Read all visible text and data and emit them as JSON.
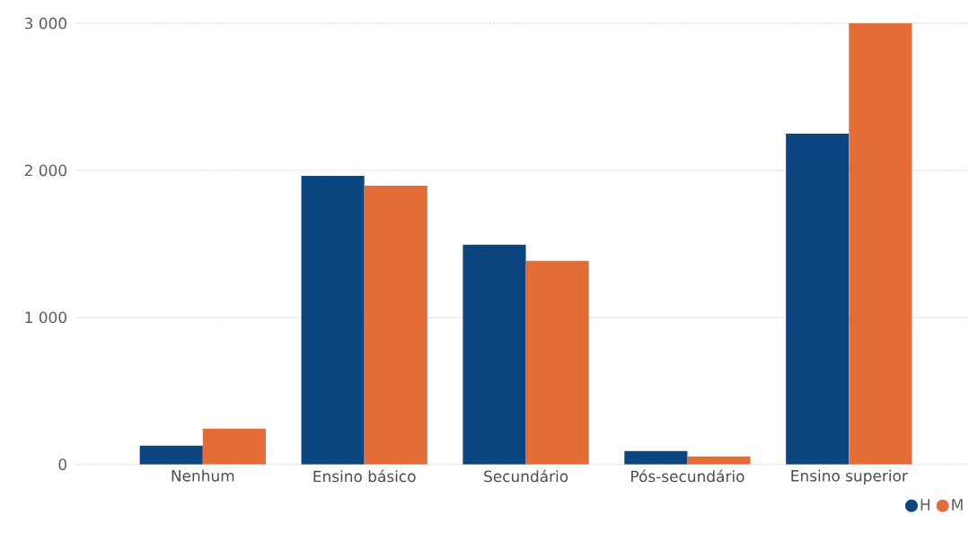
{
  "chart_data": {
    "type": "bar",
    "categories": [
      "Nenhum",
      "Ensino básico",
      "Secundário",
      "Pós-secundário",
      "Ensino superior"
    ],
    "series": [
      {
        "name": "H",
        "color": "#0b4680",
        "values": [
          128,
          1963,
          1494,
          91,
          2250
        ]
      },
      {
        "name": "M",
        "color": "#e46c37",
        "values": [
          244,
          1896,
          1384,
          55,
          3000
        ]
      }
    ],
    "ylim": [
      0,
      3000
    ],
    "yticks": [
      0,
      {
        "value": 1000,
        "label": "1 000"
      },
      {
        "value": 2000,
        "label": "2 000"
      },
      {
        "value": 3000,
        "label": "3 000"
      }
    ],
    "grid": "y",
    "legend": "bottom right"
  }
}
